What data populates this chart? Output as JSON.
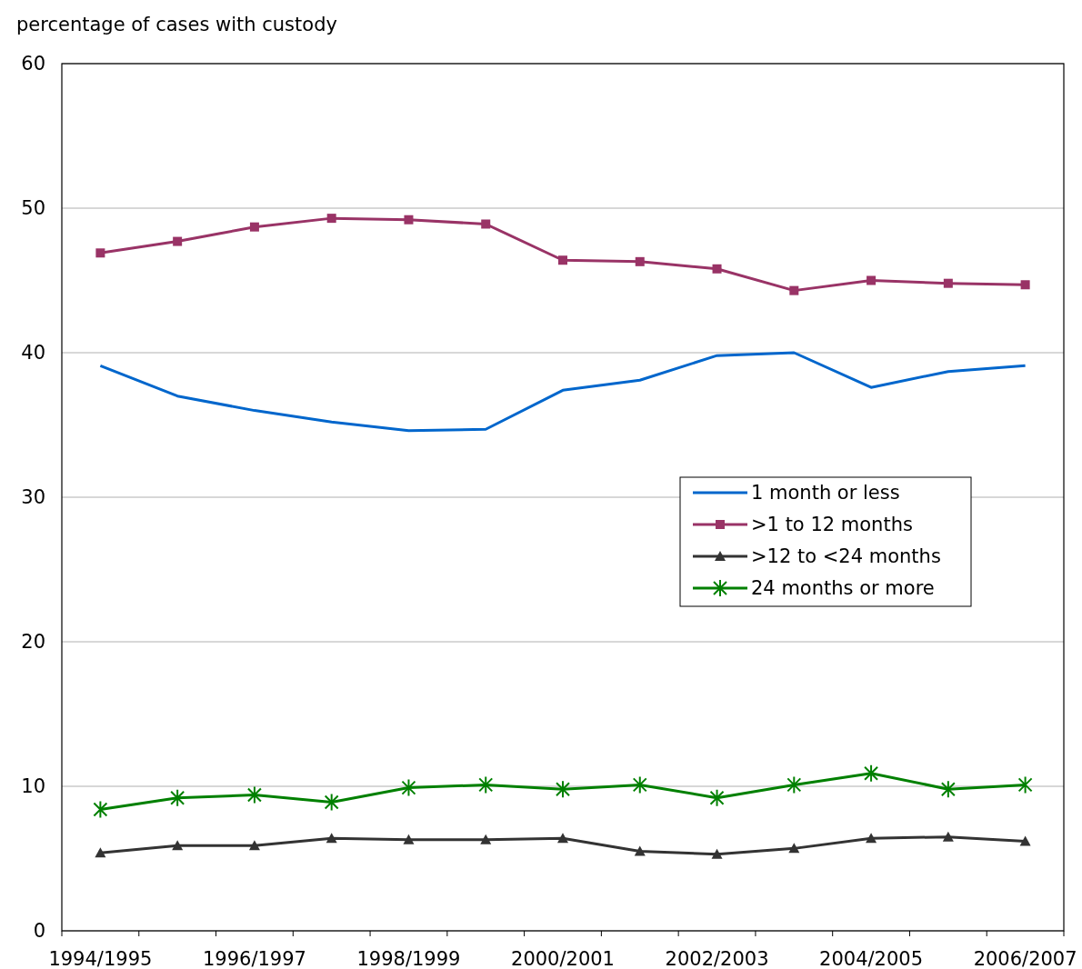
{
  "chart_data": {
    "type": "line",
    "ylabel": "percentage of cases with custody",
    "categories": [
      "1994/1995",
      null,
      "1996/1997",
      null,
      "1998/1999",
      null,
      "2000/2001",
      null,
      "2002/2003",
      null,
      "2004/2005",
      null,
      "2006/2007"
    ],
    "ylim": [
      0,
      60
    ],
    "yticks": [
      0,
      10,
      20,
      30,
      40,
      50,
      60
    ],
    "grid": "y",
    "legend": "right",
    "series": [
      {
        "name": "1 month or less",
        "color": "#0066cc",
        "marker": "none",
        "values": [
          39.1,
          37.0,
          36.0,
          35.2,
          34.6,
          34.7,
          37.4,
          38.1,
          39.8,
          40.0,
          37.6,
          38.7,
          39.1
        ]
      },
      {
        "name": ">1 to 12 months",
        "color": "#993366",
        "marker": "square",
        "values": [
          46.9,
          47.7,
          48.7,
          49.3,
          49.2,
          48.9,
          46.4,
          46.3,
          45.8,
          44.3,
          45.0,
          44.8,
          44.7
        ]
      },
      {
        "name": ">12 to <24 months",
        "color": "#333333",
        "marker": "triangle",
        "values": [
          5.4,
          5.9,
          5.9,
          6.4,
          6.3,
          6.3,
          6.4,
          5.5,
          5.3,
          5.7,
          6.4,
          6.5,
          6.2
        ]
      },
      {
        "name": "24 months or more",
        "color": "#008000",
        "marker": "cross",
        "values": [
          8.4,
          9.2,
          9.4,
          8.9,
          9.9,
          10.1,
          9.8,
          10.1,
          9.2,
          10.1,
          10.9,
          9.8,
          10.1
        ]
      }
    ]
  }
}
